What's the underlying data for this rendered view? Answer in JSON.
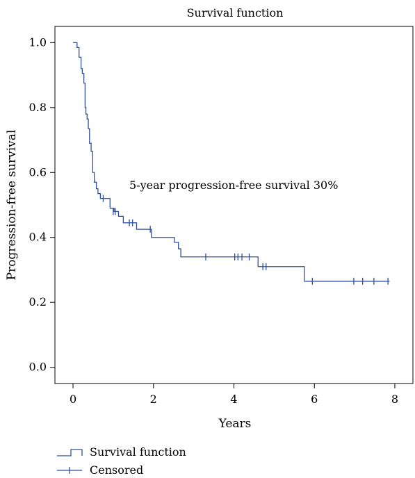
{
  "chart_data": {
    "type": "line",
    "title": "Survival function",
    "xlabel": "Years",
    "ylabel": "Progression-free survival",
    "xlim": [
      -0.45,
      8.45
    ],
    "ylim": [
      -0.05,
      1.05
    ],
    "x_ticks": [
      0,
      2,
      4,
      6,
      8
    ],
    "x_tick_labels": [
      "0",
      "2",
      "4",
      "6",
      "8"
    ],
    "y_ticks": [
      0.0,
      0.2,
      0.4,
      0.6,
      0.8,
      1.0
    ],
    "y_tick_labels": [
      "0.0",
      "0.2",
      "0.4",
      "0.6",
      "0.8",
      "1.0"
    ],
    "grid": false,
    "legend_position": "bottom-left",
    "annotation": "5-year progression-free survival 30%",
    "series": [
      {
        "name": "Survival function",
        "style": "step",
        "color": "#2f4f9f",
        "x": [
          0.0,
          0.1,
          0.15,
          0.2,
          0.23,
          0.27,
          0.3,
          0.32,
          0.35,
          0.38,
          0.41,
          0.45,
          0.49,
          0.53,
          0.58,
          0.62,
          0.68,
          0.75,
          0.92,
          1.02,
          1.13,
          1.25,
          1.58,
          1.95,
          2.52,
          2.62,
          2.68,
          4.6,
          5.75,
          7.87
        ],
        "y": [
          1.0,
          0.985,
          0.955,
          0.92,
          0.905,
          0.875,
          0.8,
          0.78,
          0.765,
          0.735,
          0.69,
          0.665,
          0.6,
          0.57,
          0.55,
          0.535,
          0.52,
          0.52,
          0.49,
          0.48,
          0.465,
          0.445,
          0.425,
          0.4,
          0.385,
          0.365,
          0.34,
          0.31,
          0.265,
          0.265
        ]
      },
      {
        "name": "Censored",
        "style": "marks",
        "color": "#2f4f9f",
        "x": [
          0.75,
          1.0,
          1.05,
          1.4,
          1.48,
          1.92,
          3.3,
          4.02,
          4.1,
          4.2,
          4.38,
          4.72,
          4.8,
          5.95,
          6.98,
          7.2,
          7.48,
          7.83
        ],
        "y": [
          0.52,
          0.48,
          0.48,
          0.445,
          0.445,
          0.425,
          0.34,
          0.34,
          0.34,
          0.34,
          0.34,
          0.31,
          0.31,
          0.265,
          0.265,
          0.265,
          0.265,
          0.265
        ]
      }
    ]
  }
}
